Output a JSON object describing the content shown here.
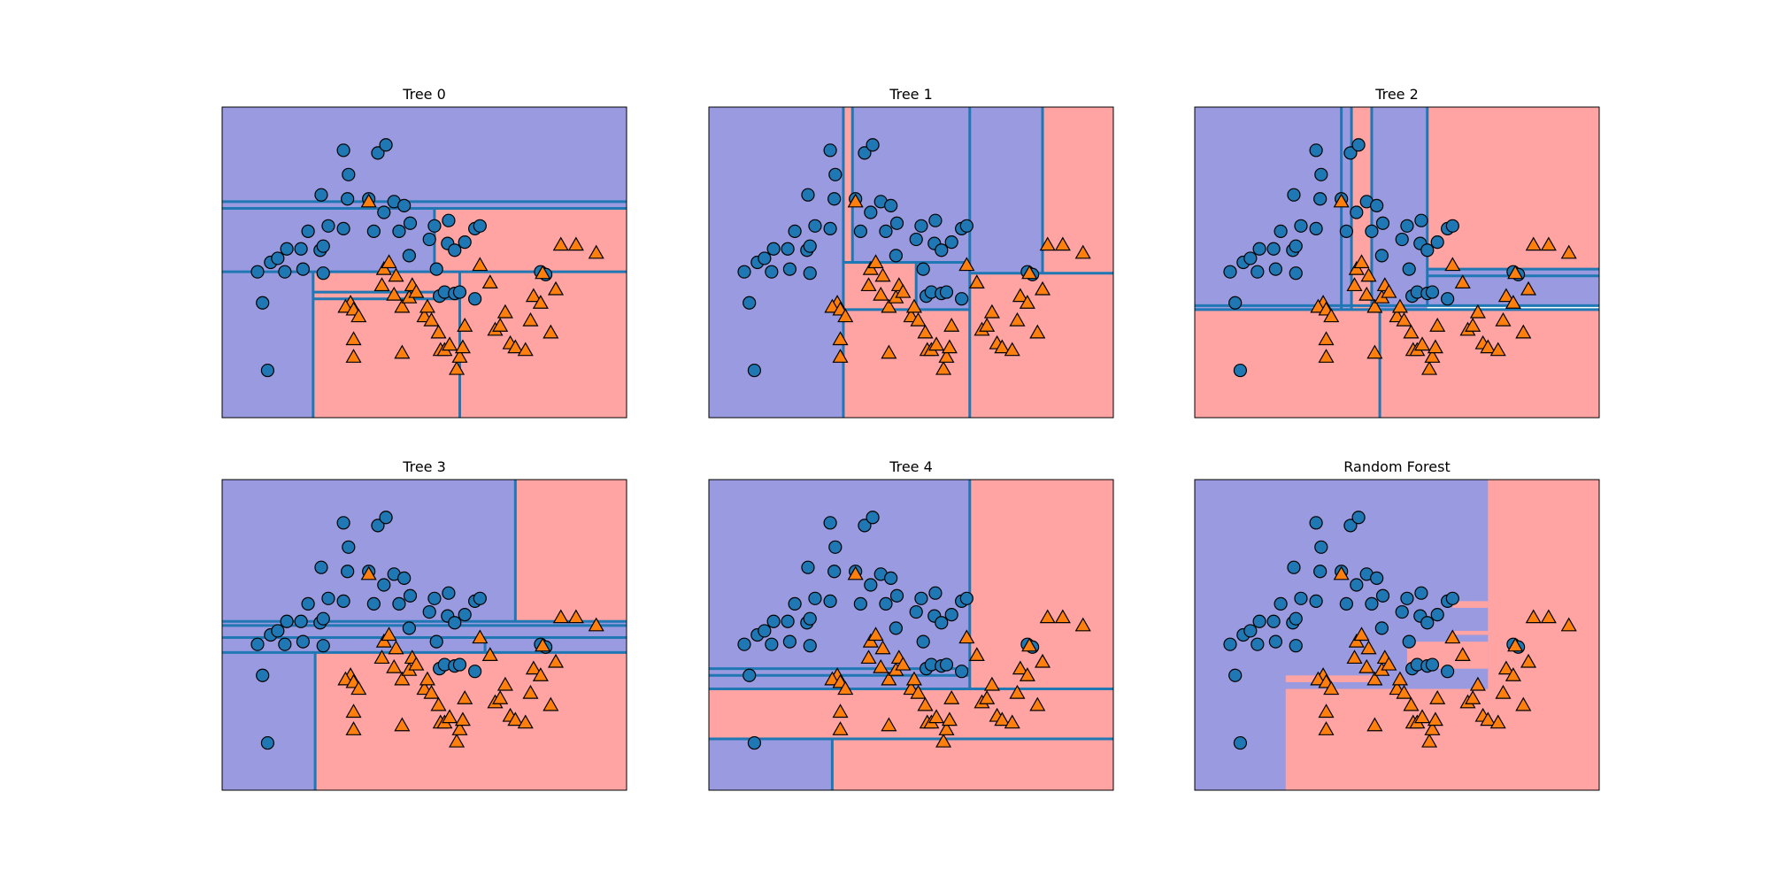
{
  "figure": {
    "colors": {
      "class0_region": "#9a9ae0",
      "class1_region": "#ffa3a3",
      "boundary": "#1f77b4",
      "class0_marker": "#1f77b4",
      "class1_marker": "#ff7f0e",
      "frame": "#000000"
    }
  },
  "chart_data": [
    {
      "type": "scatter",
      "title": "Tree 0",
      "xlim": [
        -1.5,
        2.5
      ],
      "ylim": [
        -0.8,
        1.5
      ],
      "grid": false,
      "xticks": [],
      "yticks": [],
      "regions": [
        {
          "x": [
            -1.5,
            2.5
          ],
          "y": [
            0.75,
            1.5
          ],
          "class": 0
        },
        {
          "x": [
            -1.5,
            0.6
          ],
          "y": [
            0.28,
            0.75
          ],
          "class": 0
        },
        {
          "x": [
            0.6,
            2.5
          ],
          "y": [
            0.28,
            0.75
          ],
          "class": 1
        },
        {
          "x": [
            -1.5,
            -0.6
          ],
          "y": [
            -0.8,
            0.28
          ],
          "class": 0
        },
        {
          "x": [
            -0.6,
            0.85
          ],
          "y": [
            0.08,
            0.28
          ],
          "class": 1
        },
        {
          "x": [
            -0.6,
            0.85
          ],
          "y": [
            -0.8,
            0.08
          ],
          "class": 1
        },
        {
          "x": [
            0.85,
            2.5
          ],
          "y": [
            -0.8,
            0.28
          ],
          "class": 1
        }
      ],
      "splits": [
        {
          "x": [
            -1.5,
            2.5
          ],
          "y": 0.8
        },
        {
          "x": [
            -1.5,
            2.5
          ],
          "y": 0.75
        },
        {
          "x": [
            -1.5,
            2.5
          ],
          "y": 0.28
        },
        {
          "x": [
            -0.6,
            0.85
          ],
          "y": 0.13
        },
        {
          "x": [
            -0.6,
            0.85
          ],
          "y": 0.08
        },
        {
          "x": -0.6,
          "y": [
            -0.8,
            0.28
          ]
        },
        {
          "x": 0.85,
          "y": [
            -0.8,
            0.28
          ]
        },
        {
          "x": 0.6,
          "y": [
            0.28,
            0.75
          ]
        }
      ]
    },
    {
      "type": "scatter",
      "title": "Tree 1",
      "xlim": [
        -1.5,
        2.5
      ],
      "ylim": [
        -0.8,
        1.5
      ],
      "grid": false,
      "xticks": [],
      "yticks": [],
      "regions": [
        {
          "x": [
            -1.5,
            -0.17
          ],
          "y": [
            -0.8,
            1.5
          ],
          "class": 0
        },
        {
          "x": [
            -0.17,
            -0.08
          ],
          "y": [
            0.35,
            1.5
          ],
          "class": 1
        },
        {
          "x": [
            -0.08,
            1.08
          ],
          "y": [
            0.35,
            1.5
          ],
          "class": 0
        },
        {
          "x": [
            -0.17,
            0.55
          ],
          "y": [
            0.0,
            0.35
          ],
          "class": 1
        },
        {
          "x": [
            0.55,
            1.08
          ],
          "y": [
            0.0,
            0.35
          ],
          "class": 0
        },
        {
          "x": [
            -0.17,
            1.08
          ],
          "y": [
            -0.8,
            0.0
          ],
          "class": 1
        },
        {
          "x": [
            1.08,
            1.8
          ],
          "y": [
            0.27,
            1.5
          ],
          "class": 0
        },
        {
          "x": [
            1.8,
            2.5
          ],
          "y": [
            0.27,
            1.5
          ],
          "class": 1
        },
        {
          "x": [
            1.08,
            2.5
          ],
          "y": [
            -0.8,
            0.27
          ],
          "class": 1
        }
      ],
      "splits": [
        {
          "x": -0.17,
          "y": [
            -0.8,
            1.5
          ]
        },
        {
          "x": -0.08,
          "y": [
            0.35,
            1.5
          ]
        },
        {
          "x": 1.08,
          "y": [
            -0.8,
            1.5
          ]
        },
        {
          "x": 1.8,
          "y": [
            0.27,
            1.5
          ]
        },
        {
          "x": [
            -0.17,
            1.08
          ],
          "y": 0.35
        },
        {
          "x": [
            -0.17,
            1.08
          ],
          "y": 0.0
        },
        {
          "x": 0.55,
          "y": [
            0.0,
            0.35
          ]
        },
        {
          "x": [
            1.08,
            2.5
          ],
          "y": 0.27
        }
      ]
    },
    {
      "type": "scatter",
      "title": "Tree 2",
      "xlim": [
        -1.5,
        2.5
      ],
      "ylim": [
        -0.8,
        1.5
      ],
      "grid": false,
      "xticks": [],
      "yticks": [],
      "regions": [
        {
          "x": [
            -1.5,
            0.05
          ],
          "y": [
            0.0,
            1.5
          ],
          "class": 0
        },
        {
          "x": [
            0.05,
            0.25
          ],
          "y": [
            0.0,
            1.5
          ],
          "class": 1
        },
        {
          "x": [
            0.25,
            0.8
          ],
          "y": [
            0.0,
            1.5
          ],
          "class": 0
        },
        {
          "x": [
            0.8,
            2.5
          ],
          "y": [
            0.3,
            1.5
          ],
          "class": 1
        },
        {
          "x": [
            0.8,
            2.5
          ],
          "y": [
            0.03,
            0.3
          ],
          "class": 0
        },
        {
          "x": [
            -1.5,
            2.5
          ],
          "y": [
            -0.8,
            0.0
          ],
          "class": 1
        }
      ],
      "splits": [
        {
          "x": [
            -1.5,
            2.5
          ],
          "y": 0.0
        },
        {
          "x": [
            -1.5,
            2.5
          ],
          "y": 0.03
        },
        {
          "x": 0.05,
          "y": [
            0.0,
            1.5
          ]
        },
        {
          "x": 0.25,
          "y": [
            0.0,
            1.5
          ]
        },
        {
          "x": 0.8,
          "y": [
            0.03,
            1.5
          ]
        },
        {
          "x": [
            0.8,
            2.5
          ],
          "y": 0.3
        },
        {
          "x": [
            0.8,
            2.5
          ],
          "y": 0.25
        },
        {
          "x": 0.33,
          "y": [
            -0.8,
            0.0
          ]
        },
        {
          "x": -0.05,
          "y": [
            0.0,
            1.5
          ]
        }
      ]
    },
    {
      "type": "scatter",
      "title": "Tree 3",
      "xlim": [
        -1.5,
        2.5
      ],
      "ylim": [
        -0.8,
        1.5
      ],
      "grid": false,
      "xticks": [],
      "yticks": [],
      "regions": [
        {
          "x": [
            -1.5,
            1.4
          ],
          "y": [
            0.45,
            1.5
          ],
          "class": 0
        },
        {
          "x": [
            1.4,
            2.5
          ],
          "y": [
            0.45,
            1.5
          ],
          "class": 1
        },
        {
          "x": [
            -1.5,
            2.5
          ],
          "y": [
            0.22,
            0.45
          ],
          "class": 0
        },
        {
          "x": [
            -1.5,
            -0.58
          ],
          "y": [
            -0.8,
            0.22
          ],
          "class": 0
        },
        {
          "x": [
            -0.58,
            2.5
          ],
          "y": [
            -0.8,
            0.22
          ],
          "class": 1
        }
      ],
      "splits": [
        {
          "x": 1.4,
          "y": [
            0.45,
            1.5
          ]
        },
        {
          "x": [
            -1.5,
            2.5
          ],
          "y": 0.45
        },
        {
          "x": [
            -1.5,
            2.5
          ],
          "y": 0.42
        },
        {
          "x": [
            -1.5,
            2.5
          ],
          "y": 0.33
        },
        {
          "x": [
            -1.5,
            2.5
          ],
          "y": 0.22
        },
        {
          "x": 1.1,
          "y": [
            0.22,
            0.33
          ]
        },
        {
          "x": -0.58,
          "y": [
            -0.8,
            0.22
          ]
        }
      ]
    },
    {
      "type": "scatter",
      "title": "Tree 4",
      "xlim": [
        -1.5,
        2.5
      ],
      "ylim": [
        -0.8,
        1.5
      ],
      "grid": false,
      "xticks": [],
      "yticks": [],
      "regions": [
        {
          "x": [
            -1.5,
            1.08
          ],
          "y": [
            0.1,
            1.5
          ],
          "class": 0
        },
        {
          "x": [
            1.08,
            2.5
          ],
          "y": [
            -0.05,
            1.5
          ],
          "class": 1
        },
        {
          "x": [
            -1.5,
            1.08
          ],
          "y": [
            -0.05,
            0.1
          ],
          "class": 0
        },
        {
          "x": [
            -1.5,
            2.5
          ],
          "y": [
            -0.42,
            -0.05
          ],
          "class": 1
        },
        {
          "x": [
            -1.5,
            -0.28
          ],
          "y": [
            -0.8,
            -0.42
          ],
          "class": 0
        },
        {
          "x": [
            -0.28,
            2.5
          ],
          "y": [
            -0.8,
            -0.42
          ],
          "class": 1
        }
      ],
      "splits": [
        {
          "x": 1.08,
          "y": [
            -0.05,
            1.5
          ]
        },
        {
          "x": [
            -1.5,
            1.08
          ],
          "y": 0.1
        },
        {
          "x": [
            -1.5,
            1.08
          ],
          "y": 0.05
        },
        {
          "x": [
            -1.5,
            2.5
          ],
          "y": -0.05
        },
        {
          "x": [
            -1.5,
            2.5
          ],
          "y": -0.42
        },
        {
          "x": -0.28,
          "y": [
            -0.8,
            -0.42
          ]
        }
      ]
    },
    {
      "type": "scatter",
      "title": "Random Forest",
      "xlim": [
        -1.5,
        2.5
      ],
      "ylim": [
        -0.8,
        1.5
      ],
      "grid": false,
      "xticks": [],
      "yticks": [],
      "regions": [
        {
          "x": [
            -1.5,
            2.5
          ],
          "y": [
            -0.8,
            1.5
          ],
          "class": 0
        },
        {
          "x": [
            1.4,
            2.5
          ],
          "y": [
            -0.8,
            1.5
          ],
          "class": 1
        },
        {
          "x": [
            -0.6,
            2.5
          ],
          "y": [
            -0.8,
            -0.05
          ],
          "class": 1
        },
        {
          "x": [
            0.6,
            1.4
          ],
          "y": [
            0.1,
            0.3
          ],
          "class": 1
        },
        {
          "x": [
            1.05,
            1.4
          ],
          "y": [
            0.55,
            0.6
          ],
          "class": 1
        },
        {
          "x": [
            1.05,
            1.4
          ],
          "y": [
            0.35,
            0.38
          ],
          "class": 1
        },
        {
          "x": [
            -0.6,
            0.3
          ],
          "y": [
            0.0,
            0.05
          ],
          "class": 1
        }
      ],
      "splits": []
    }
  ],
  "scatter_points": {
    "class0": [
      [
        -1.05,
        -0.45
      ],
      [
        -1.1,
        0.05
      ],
      [
        -1.15,
        0.28
      ],
      [
        -1.02,
        0.35
      ],
      [
        -0.88,
        0.28
      ],
      [
        -0.95,
        0.38
      ],
      [
        -0.7,
        0.3
      ],
      [
        -0.72,
        0.45
      ],
      [
        -0.53,
        0.44
      ],
      [
        -0.5,
        0.47
      ],
      [
        -0.45,
        0.62
      ],
      [
        -0.5,
        0.27
      ],
      [
        -0.65,
        0.58
      ],
      [
        -0.52,
        0.85
      ],
      [
        -0.3,
        0.6
      ],
      [
        -0.26,
        0.82
      ],
      [
        -0.25,
        1.0
      ],
      [
        -0.3,
        1.18
      ],
      [
        -0.05,
        0.82
      ],
      [
        0.0,
        0.58
      ],
      [
        0.04,
        1.16
      ],
      [
        0.12,
        1.22
      ],
      [
        0.2,
        0.8
      ],
      [
        0.25,
        0.58
      ],
      [
        0.3,
        0.77
      ],
      [
        0.35,
        0.4
      ],
      [
        0.36,
        0.64
      ],
      [
        0.55,
        0.52
      ],
      [
        0.6,
        0.62
      ],
      [
        0.62,
        0.3
      ],
      [
        0.65,
        0.1
      ],
      [
        0.7,
        0.13
      ],
      [
        0.73,
        0.49
      ],
      [
        0.74,
        0.66
      ],
      [
        0.8,
        0.12
      ],
      [
        0.8,
        0.44
      ],
      [
        0.9,
        0.5
      ],
      [
        1.0,
        0.6
      ],
      [
        1.05,
        0.62
      ],
      [
        1.65,
        0.28
      ],
      [
        1.7,
        0.26
      ],
      [
        1.0,
        0.08
      ],
      [
        -0.86,
        0.45
      ],
      [
        0.1,
        0.72
      ],
      [
        0.85,
        0.13
      ]
    ],
    "class1": [
      [
        -0.05,
        0.8
      ],
      [
        -0.23,
        0.05
      ],
      [
        -0.28,
        0.02
      ],
      [
        -0.2,
        -0.22
      ],
      [
        -0.2,
        -0.35
      ],
      [
        -0.2,
        0.0
      ],
      [
        0.1,
        0.3
      ],
      [
        0.08,
        0.18
      ],
      [
        0.2,
        0.11
      ],
      [
        0.22,
        0.25
      ],
      [
        0.28,
        0.02
      ],
      [
        0.35,
        0.09
      ],
      [
        0.38,
        0.18
      ],
      [
        0.42,
        0.13
      ],
      [
        0.5,
        -0.05
      ],
      [
        0.53,
        0.02
      ],
      [
        0.57,
        -0.08
      ],
      [
        0.64,
        -0.17
      ],
      [
        0.66,
        -0.3
      ],
      [
        0.7,
        -0.3
      ],
      [
        0.75,
        -0.26
      ],
      [
        0.82,
        -0.44
      ],
      [
        0.85,
        -0.35
      ],
      [
        0.88,
        -0.28
      ],
      [
        0.9,
        -0.12
      ],
      [
        1.05,
        0.33
      ],
      [
        1.15,
        0.2
      ],
      [
        1.2,
        -0.15
      ],
      [
        1.25,
        -0.12
      ],
      [
        1.3,
        -0.02
      ],
      [
        1.35,
        -0.25
      ],
      [
        1.4,
        -0.28
      ],
      [
        1.5,
        -0.3
      ],
      [
        1.55,
        -0.08
      ],
      [
        1.58,
        0.1
      ],
      [
        1.65,
        0.05
      ],
      [
        1.75,
        -0.17
      ],
      [
        1.8,
        0.15
      ],
      [
        1.85,
        0.48
      ],
      [
        2.0,
        0.48
      ],
      [
        2.2,
        0.42
      ],
      [
        1.67,
        0.27
      ],
      [
        0.15,
        0.35
      ],
      [
        0.28,
        -0.32
      ],
      [
        -0.15,
        -0.05
      ]
    ]
  }
}
